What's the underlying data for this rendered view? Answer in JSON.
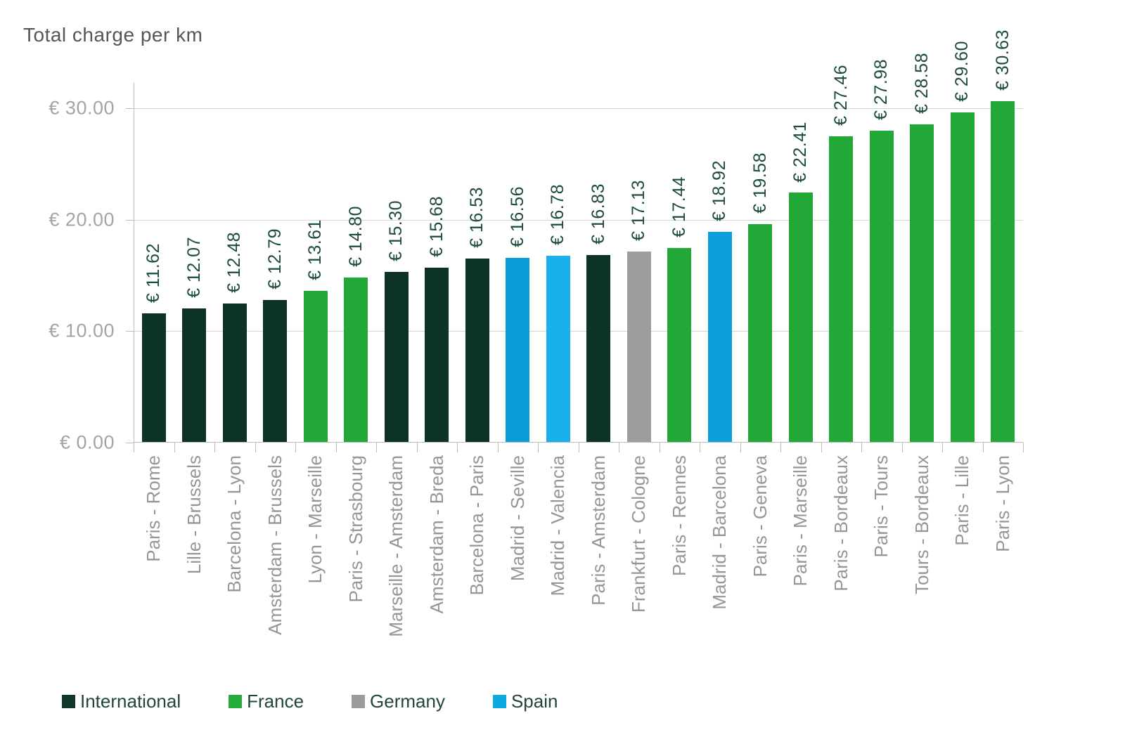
{
  "chart_data": {
    "type": "bar",
    "title": "Total charge per km",
    "xlabel": "",
    "ylabel": "",
    "y_axis": {
      "min": 0,
      "max": 32.3,
      "grid": true,
      "ticks": [
        {
          "value": 0,
          "label": "€ 0.00"
        },
        {
          "value": 10,
          "label": "€ 10.00"
        },
        {
          "value": 20,
          "label": "€ 20.00"
        },
        {
          "value": 30,
          "label": "€ 30.00"
        }
      ]
    },
    "legend": {
      "position": "bottom",
      "entries": [
        {
          "label": "International",
          "color": "#12382b"
        },
        {
          "label": "France",
          "color": "#25ad3b"
        },
        {
          "label": "Germany",
          "color": "#9b9b9b"
        },
        {
          "label": "Spain",
          "color": "#0ca9e3"
        }
      ]
    },
    "bars": [
      {
        "category": "Paris - Rome",
        "value": 11.62,
        "label": "€ 11.62",
        "group": "International",
        "color": "#0d3329"
      },
      {
        "category": "Lille - Brussels",
        "value": 12.07,
        "label": "€ 12.07",
        "group": "International",
        "color": "#0d3329"
      },
      {
        "category": "Barcelona - Lyon",
        "value": 12.48,
        "label": "€ 12.48",
        "group": "International",
        "color": "#0d3329"
      },
      {
        "category": "Amsterdam - Brussels",
        "value": 12.79,
        "label": "€ 12.79",
        "group": "International",
        "color": "#0d3329"
      },
      {
        "category": "Lyon - Marseille",
        "value": 13.61,
        "label": "€ 13.61",
        "group": "France",
        "color": "#21a837"
      },
      {
        "category": "Paris - Strasbourg",
        "value": 14.8,
        "label": "€ 14.80",
        "group": "France",
        "color": "#21a837"
      },
      {
        "category": "Marseille - Amsterdam",
        "value": 15.3,
        "label": "€ 15.30",
        "group": "International",
        "color": "#0d3329"
      },
      {
        "category": "Amsterdam - Breda",
        "value": 15.68,
        "label": "€ 15.68",
        "group": "International",
        "color": "#0d3329"
      },
      {
        "category": "Barcelona - Paris",
        "value": 16.53,
        "label": "€ 16.53",
        "group": "International",
        "color": "#0d3329"
      },
      {
        "category": "Madrid - Seville",
        "value": 16.56,
        "label": "€ 16.56",
        "group": "Spain",
        "color": "#0a9cd6"
      },
      {
        "category": "Madrid - Valencia",
        "value": 16.78,
        "label": "€ 16.78",
        "group": "Spain",
        "color": "#19b0ec"
      },
      {
        "category": "Paris - Amsterdam",
        "value": 16.83,
        "label": "€ 16.83",
        "group": "International",
        "color": "#0d3329"
      },
      {
        "category": "Frankfurt - Cologne",
        "value": 17.13,
        "label": "€ 17.13",
        "group": "Germany",
        "color": "#9d9d9d"
      },
      {
        "category": "Paris - Rennes",
        "value": 17.44,
        "label": "€ 17.44",
        "group": "France",
        "color": "#21a837"
      },
      {
        "category": "Madrid - Barcelona",
        "value": 18.92,
        "label": "€ 18.92",
        "group": "Spain",
        "color": "#0d9fda"
      },
      {
        "category": "Paris - Geneva",
        "value": 19.58,
        "label": "€ 19.58",
        "group": "France",
        "color": "#21a837"
      },
      {
        "category": "Paris - Marseille",
        "value": 22.41,
        "label": "€ 22.41",
        "group": "France",
        "color": "#21a837"
      },
      {
        "category": "Paris - Bordeaux",
        "value": 27.46,
        "label": "€ 27.46",
        "group": "France",
        "color": "#21a837"
      },
      {
        "category": "Paris - Tours",
        "value": 27.98,
        "label": "€ 27.98",
        "group": "France",
        "color": "#21a837"
      },
      {
        "category": "Tours - Bordeaux",
        "value": 28.58,
        "label": "€ 28.58",
        "group": "France",
        "color": "#21a837"
      },
      {
        "category": "Paris - Lille",
        "value": 29.6,
        "label": "€ 29.60",
        "group": "France",
        "color": "#21a837"
      },
      {
        "category": "Paris - Lyon",
        "value": 30.63,
        "label": "€ 30.63",
        "group": "France",
        "color": "#21a837"
      }
    ]
  }
}
